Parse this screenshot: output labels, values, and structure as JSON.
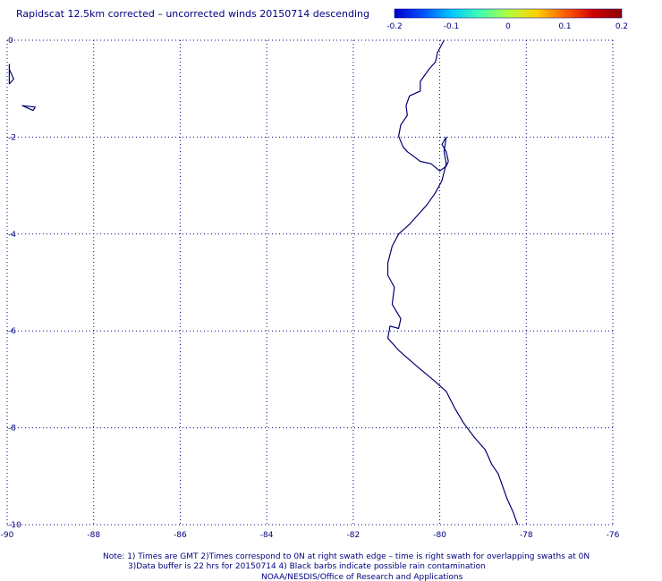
{
  "title": "Rapidscat 12.5km corrected – uncorrected winds 20150714 descending",
  "colorbar": {
    "min": -0.2,
    "max": 0.2,
    "tick_labels": [
      "-0.2",
      "-0.1",
      "0",
      "0.1",
      "0.2"
    ],
    "tick_values": [
      -0.2,
      -0.1,
      0,
      0.1,
      0.2
    ],
    "colors": [
      "#0000c8",
      "#0050ff",
      "#00c8ff",
      "#40ffb0",
      "#b0ff40",
      "#ffd000",
      "#ff6000",
      "#d00000",
      "#8b0000"
    ]
  },
  "map": {
    "lon_range": [
      -90,
      -76
    ],
    "lat_range": [
      -10,
      0
    ],
    "lon_ticks": [
      -90,
      -88,
      -86,
      -84,
      -82,
      -80,
      -78,
      -76
    ],
    "lon_tick_labels": [
      "-90",
      "-88",
      "-86",
      "-84",
      "-82",
      "-80",
      "-78",
      "-76"
    ],
    "lat_ticks": [
      0,
      -2,
      -4,
      -6,
      -8,
      -10
    ],
    "lat_tick_labels": [
      "0",
      "-2",
      "-4",
      "-6",
      "-8",
      "-10"
    ],
    "grid": true,
    "coastline": [
      [
        -79.9,
        0.0
      ],
      [
        -80.05,
        -0.25
      ],
      [
        -80.1,
        -0.45
      ],
      [
        -80.25,
        -0.6
      ],
      [
        -80.45,
        -0.85
      ],
      [
        -80.45,
        -1.05
      ],
      [
        -80.7,
        -1.15
      ],
      [
        -80.78,
        -1.35
      ],
      [
        -80.75,
        -1.55
      ],
      [
        -80.9,
        -1.75
      ],
      [
        -80.95,
        -1.98
      ],
      [
        -80.85,
        -2.2
      ],
      [
        -80.75,
        -2.3
      ],
      [
        -80.45,
        -2.5
      ],
      [
        -80.2,
        -2.55
      ],
      [
        -80.0,
        -2.7
      ],
      [
        -79.85,
        -2.6
      ],
      [
        -79.8,
        -2.5
      ],
      [
        -79.85,
        -2.3
      ],
      [
        -79.95,
        -2.15
      ],
      [
        -79.85,
        -2.0
      ],
      [
        -79.9,
        -2.3
      ],
      [
        -79.85,
        -2.55
      ],
      [
        -79.95,
        -2.9
      ],
      [
        -80.1,
        -3.15
      ],
      [
        -80.3,
        -3.4
      ],
      [
        -80.5,
        -3.6
      ],
      [
        -80.7,
        -3.8
      ],
      [
        -80.95,
        -4.0
      ],
      [
        -81.1,
        -4.25
      ],
      [
        -81.2,
        -4.6
      ],
      [
        -81.2,
        -4.85
      ],
      [
        -81.05,
        -5.1
      ],
      [
        -81.1,
        -5.45
      ],
      [
        -80.9,
        -5.75
      ],
      [
        -80.95,
        -5.95
      ],
      [
        -81.15,
        -5.9
      ],
      [
        -81.2,
        -6.15
      ],
      [
        -80.95,
        -6.4
      ],
      [
        -80.5,
        -6.75
      ],
      [
        -80.1,
        -7.05
      ],
      [
        -79.85,
        -7.25
      ],
      [
        -79.65,
        -7.6
      ],
      [
        -79.45,
        -7.9
      ],
      [
        -79.2,
        -8.2
      ],
      [
        -78.95,
        -8.45
      ],
      [
        -78.8,
        -8.75
      ],
      [
        -78.65,
        -8.95
      ],
      [
        -78.55,
        -9.2
      ],
      [
        -78.45,
        -9.45
      ],
      [
        -78.3,
        -9.75
      ],
      [
        -78.2,
        -10.0
      ]
    ],
    "islands": [
      [
        [
          -90.7,
          -0.5
        ],
        [
          -90.2,
          -0.6
        ],
        [
          -89.85,
          -0.8
        ],
        [
          -90.1,
          -0.9
        ],
        [
          -90.5,
          -0.85
        ],
        [
          -90.7,
          -0.5
        ]
      ],
      [
        [
          -89.65,
          -1.35
        ],
        [
          -89.35,
          -1.38
        ],
        [
          -89.4,
          -1.45
        ],
        [
          -89.65,
          -1.35
        ]
      ]
    ]
  },
  "footnote": {
    "line1": "Note: 1) Times are GMT 2)Times correspond to 0N at right swath edge – time is right swath for overlapping swaths at 0N",
    "line2": "3)Data buffer is 22 hrs for 20150714 4) Black barbs indicate possible rain contamination",
    "line3": "NOAA/NESDIS/Office of Research and Applications"
  }
}
